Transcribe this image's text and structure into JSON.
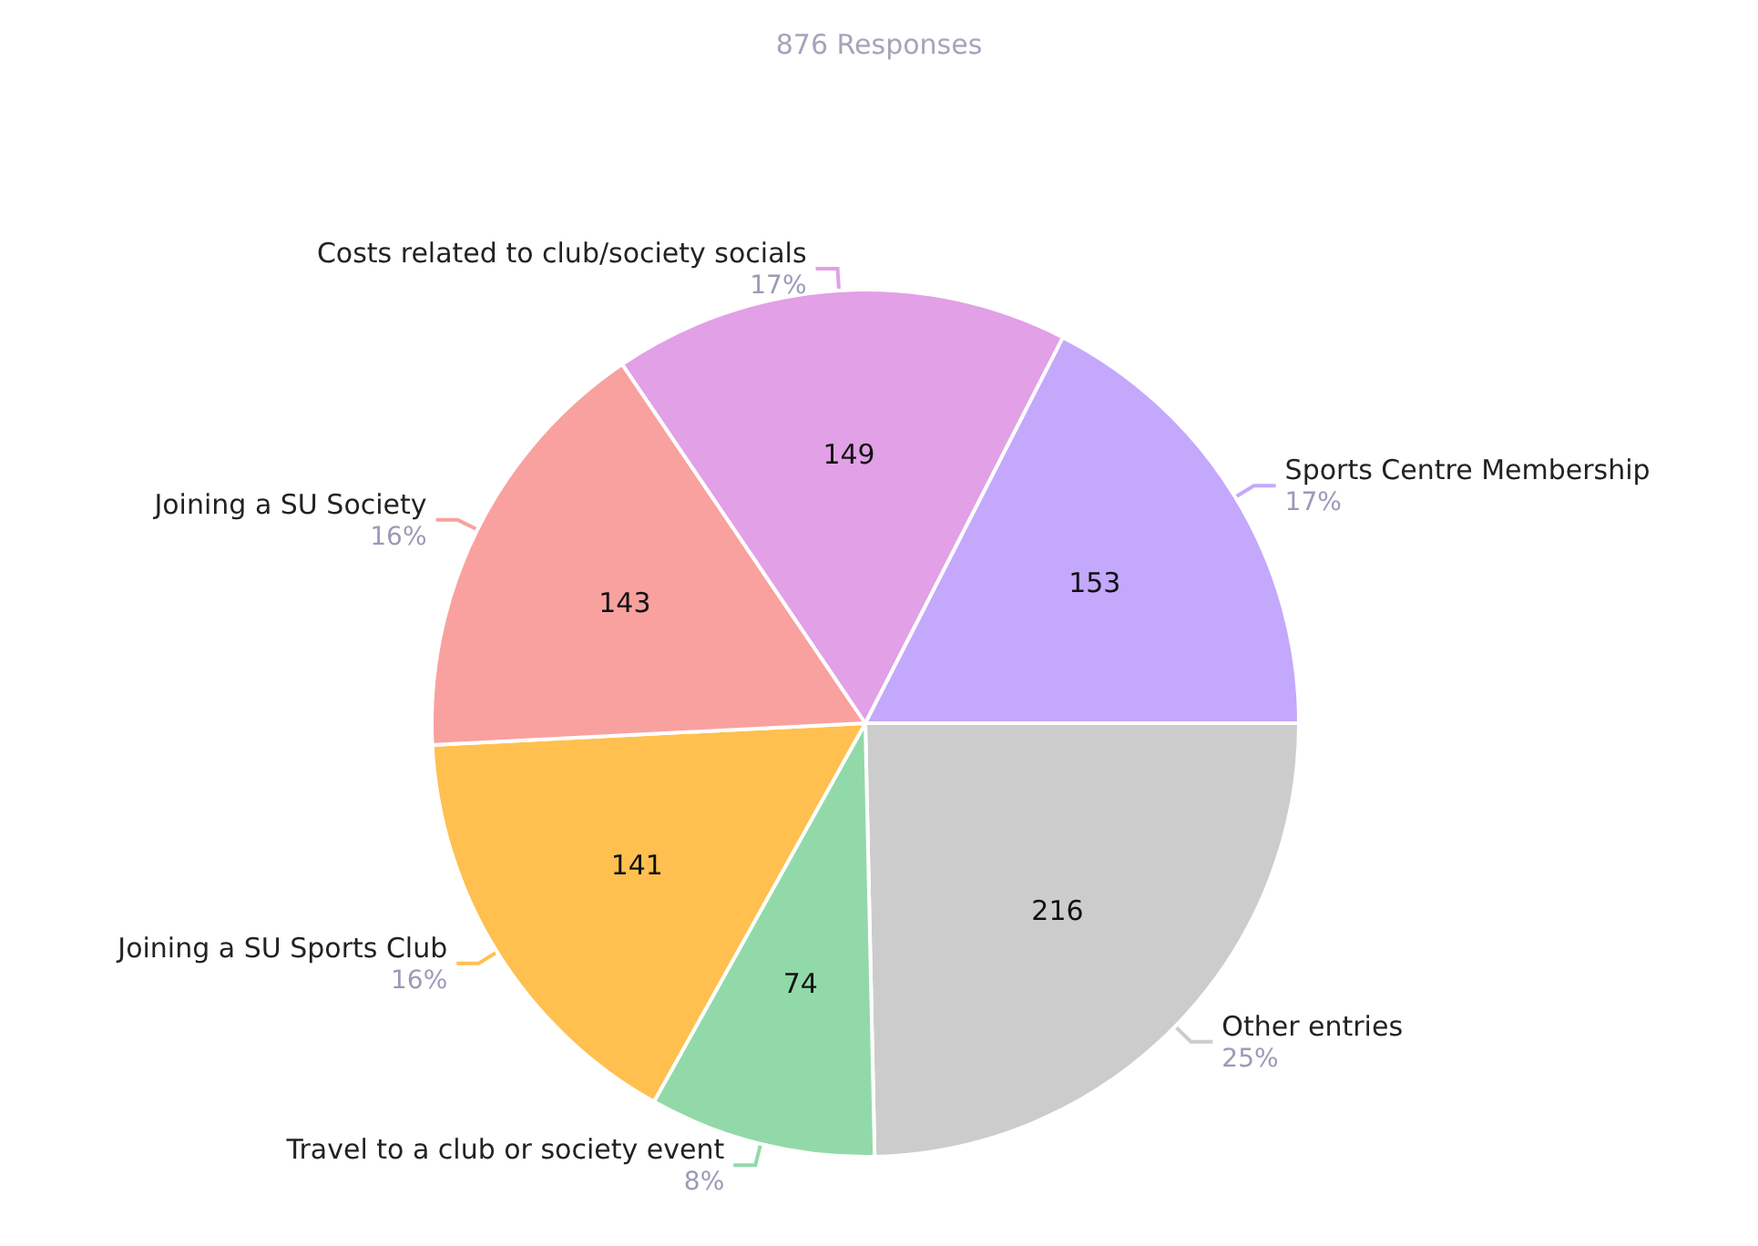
{
  "chart_data": {
    "type": "pie",
    "title": "876 Responses",
    "categories": [
      "Other entries",
      "Travel to a club or society event",
      "Joining a SU Sports Club",
      "Joining a SU Society",
      "Costs related to club/society socials",
      "Sports Centre Membership"
    ],
    "values": [
      216,
      74,
      141,
      143,
      149,
      153
    ],
    "colors": [
      "#cccccc",
      "#92d9a9",
      "#ffc04f",
      "#f9a19f",
      "#e2a0e6",
      "#c4a8fc"
    ],
    "value_labels": [
      "216",
      "74",
      "141",
      "143",
      "149",
      "153"
    ],
    "annotations": [
      "25%",
      "8%",
      "16%",
      "16%",
      "17%",
      "17%"
    ],
    "legend": false
  }
}
